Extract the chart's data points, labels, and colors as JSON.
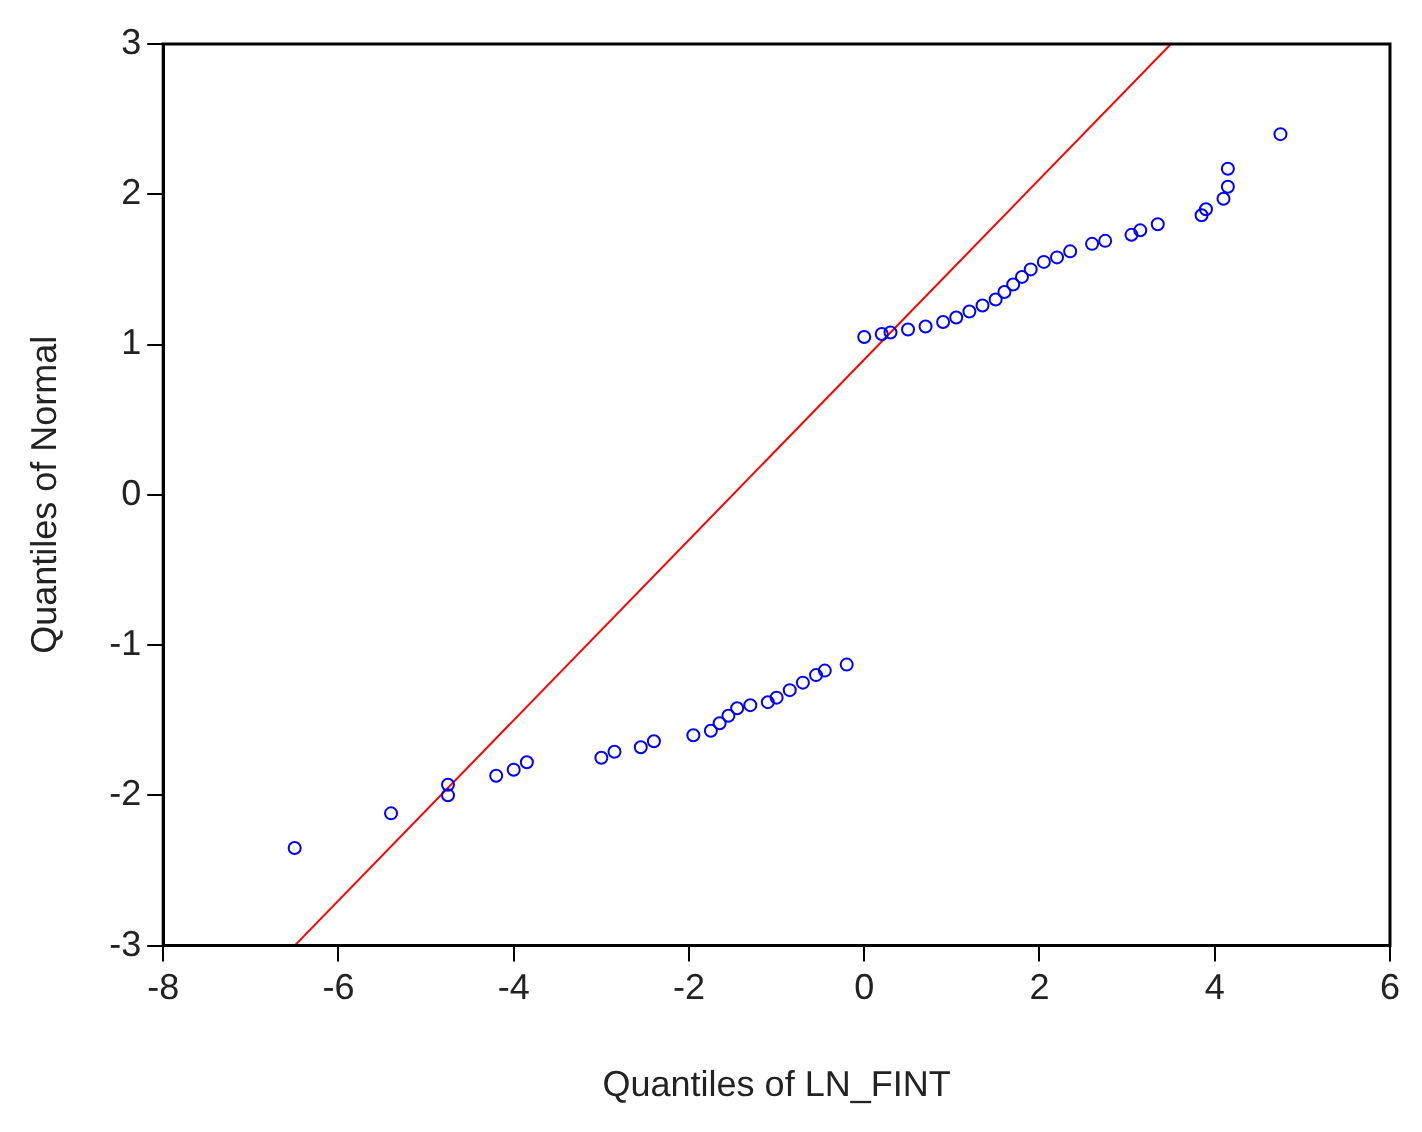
{
  "chart_data": {
    "type": "scatter",
    "xlabel": "Quantiles of LN_FINT",
    "ylabel": "Quantiles of Normal",
    "xlim": [
      -8,
      6
    ],
    "ylim": [
      -3,
      3
    ],
    "xticks": [
      -8,
      -6,
      -4,
      -2,
      0,
      2,
      4,
      6
    ],
    "yticks": [
      -3,
      -2,
      -1,
      0,
      1,
      2,
      3
    ],
    "grid": false,
    "legend": false,
    "marker": "circle",
    "series": [
      {
        "type": "scatter",
        "color": "#0000ff",
        "x": [
          -6.5,
          -5.4,
          -4.75,
          -4.75,
          -4.2,
          -4.0,
          -3.85,
          -3.0,
          -2.85,
          -2.55,
          -2.4,
          -1.95,
          -1.75,
          -1.65,
          -1.55,
          -1.45,
          -1.3,
          -1.1,
          -1.0,
          -0.85,
          -0.7,
          -0.55,
          -0.45,
          -0.2,
          0.0,
          0.2,
          0.3,
          0.5,
          0.7,
          0.9,
          1.05,
          1.2,
          1.35,
          1.5,
          1.6,
          1.7,
          1.8,
          1.9,
          2.05,
          2.2,
          2.35,
          2.6,
          2.75,
          3.05,
          3.15,
          3.35,
          3.85,
          3.9,
          4.1,
          4.15,
          4.15,
          4.75
        ],
        "values": [
          -2.35,
          -2.12,
          -1.93,
          -2.0,
          -1.87,
          -1.83,
          -1.78,
          -1.75,
          -1.71,
          -1.68,
          -1.64,
          -1.6,
          -1.57,
          -1.52,
          -1.47,
          -1.42,
          -1.4,
          -1.38,
          -1.35,
          -1.3,
          -1.25,
          -1.2,
          -1.17,
          -1.13,
          1.05,
          1.07,
          1.08,
          1.1,
          1.12,
          1.15,
          1.18,
          1.22,
          1.26,
          1.3,
          1.35,
          1.4,
          1.45,
          1.5,
          1.55,
          1.58,
          1.62,
          1.67,
          1.69,
          1.73,
          1.76,
          1.8,
          1.86,
          1.9,
          1.97,
          2.05,
          2.17,
          2.4
        ]
      },
      {
        "type": "line",
        "color": "#ff0000",
        "x": [
          -6.5,
          3.5
        ],
        "values": [
          -3,
          3
        ],
        "line_style": "solid",
        "marker": "none"
      }
    ]
  }
}
